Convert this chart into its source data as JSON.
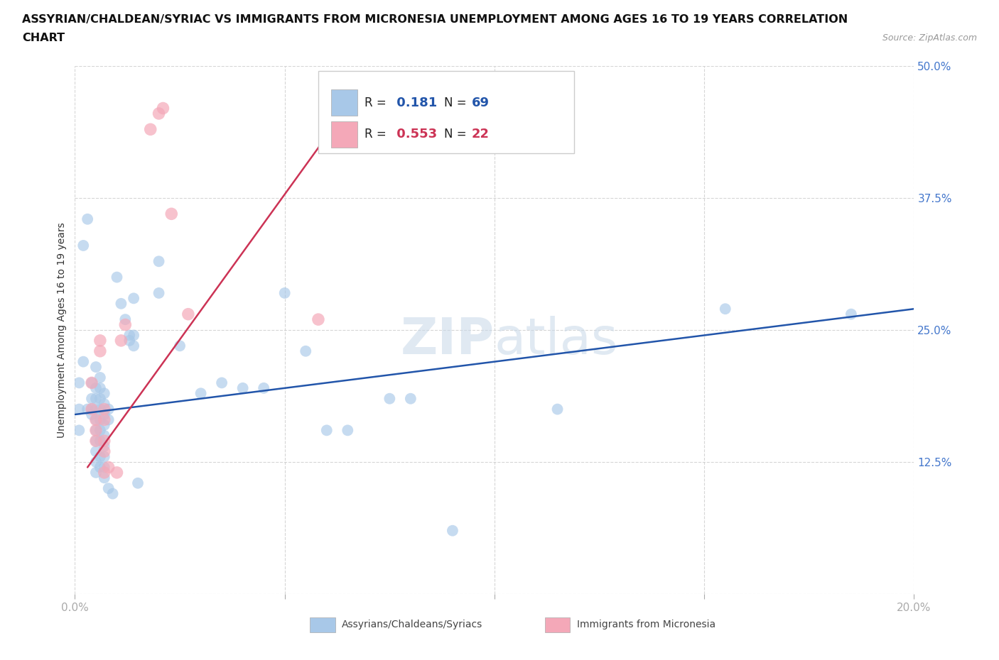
{
  "title_line1": "ASSYRIAN/CHALDEAN/SYRIAC VS IMMIGRANTS FROM MICRONESIA UNEMPLOYMENT AMONG AGES 16 TO 19 YEARS CORRELATION",
  "title_line2": "CHART",
  "source_text": "Source: ZipAtlas.com",
  "ylabel": "Unemployment Among Ages 16 to 19 years",
  "xlim": [
    0.0,
    0.2
  ],
  "ylim": [
    0.0,
    0.5
  ],
  "blue_R": 0.181,
  "blue_N": 69,
  "pink_R": 0.553,
  "pink_N": 22,
  "blue_color": "#a8c8e8",
  "pink_color": "#f4a8b8",
  "blue_line_color": "#2255aa",
  "pink_line_color": "#cc3355",
  "legend_label_blue": "Assyrians/Chaldeans/Syriacs",
  "legend_label_pink": "Immigrants from Micronesia",
  "blue_points": [
    [
      0.001,
      0.175
    ],
    [
      0.001,
      0.155
    ],
    [
      0.001,
      0.2
    ],
    [
      0.002,
      0.33
    ],
    [
      0.002,
      0.22
    ],
    [
      0.003,
      0.355
    ],
    [
      0.003,
      0.175
    ],
    [
      0.004,
      0.2
    ],
    [
      0.004,
      0.185
    ],
    [
      0.004,
      0.175
    ],
    [
      0.004,
      0.17
    ],
    [
      0.005,
      0.215
    ],
    [
      0.005,
      0.195
    ],
    [
      0.005,
      0.185
    ],
    [
      0.005,
      0.175
    ],
    [
      0.005,
      0.165
    ],
    [
      0.005,
      0.155
    ],
    [
      0.005,
      0.145
    ],
    [
      0.005,
      0.135
    ],
    [
      0.005,
      0.125
    ],
    [
      0.005,
      0.115
    ],
    [
      0.006,
      0.205
    ],
    [
      0.006,
      0.195
    ],
    [
      0.006,
      0.185
    ],
    [
      0.006,
      0.175
    ],
    [
      0.006,
      0.165
    ],
    [
      0.006,
      0.155
    ],
    [
      0.006,
      0.145
    ],
    [
      0.006,
      0.13
    ],
    [
      0.006,
      0.12
    ],
    [
      0.007,
      0.19
    ],
    [
      0.007,
      0.18
    ],
    [
      0.007,
      0.17
    ],
    [
      0.007,
      0.16
    ],
    [
      0.007,
      0.15
    ],
    [
      0.007,
      0.14
    ],
    [
      0.007,
      0.13
    ],
    [
      0.007,
      0.12
    ],
    [
      0.007,
      0.11
    ],
    [
      0.008,
      0.175
    ],
    [
      0.008,
      0.165
    ],
    [
      0.008,
      0.1
    ],
    [
      0.009,
      0.095
    ],
    [
      0.01,
      0.3
    ],
    [
      0.011,
      0.275
    ],
    [
      0.012,
      0.26
    ],
    [
      0.013,
      0.245
    ],
    [
      0.013,
      0.24
    ],
    [
      0.014,
      0.28
    ],
    [
      0.014,
      0.245
    ],
    [
      0.014,
      0.235
    ],
    [
      0.015,
      0.105
    ],
    [
      0.02,
      0.315
    ],
    [
      0.02,
      0.285
    ],
    [
      0.025,
      0.235
    ],
    [
      0.03,
      0.19
    ],
    [
      0.035,
      0.2
    ],
    [
      0.04,
      0.195
    ],
    [
      0.045,
      0.195
    ],
    [
      0.05,
      0.285
    ],
    [
      0.055,
      0.23
    ],
    [
      0.06,
      0.155
    ],
    [
      0.065,
      0.155
    ],
    [
      0.075,
      0.185
    ],
    [
      0.08,
      0.185
    ],
    [
      0.09,
      0.06
    ],
    [
      0.115,
      0.175
    ],
    [
      0.155,
      0.27
    ],
    [
      0.185,
      0.265
    ]
  ],
  "pink_points": [
    [
      0.004,
      0.2
    ],
    [
      0.004,
      0.175
    ],
    [
      0.005,
      0.165
    ],
    [
      0.005,
      0.155
    ],
    [
      0.005,
      0.145
    ],
    [
      0.006,
      0.24
    ],
    [
      0.006,
      0.23
    ],
    [
      0.007,
      0.175
    ],
    [
      0.007,
      0.165
    ],
    [
      0.007,
      0.145
    ],
    [
      0.007,
      0.135
    ],
    [
      0.007,
      0.115
    ],
    [
      0.008,
      0.12
    ],
    [
      0.01,
      0.115
    ],
    [
      0.011,
      0.24
    ],
    [
      0.012,
      0.255
    ],
    [
      0.018,
      0.44
    ],
    [
      0.02,
      0.455
    ],
    [
      0.021,
      0.46
    ],
    [
      0.023,
      0.36
    ],
    [
      0.027,
      0.265
    ],
    [
      0.058,
      0.26
    ]
  ],
  "blue_trendline_x": [
    0.0,
    0.2
  ],
  "blue_trendline_y": [
    0.17,
    0.27
  ],
  "pink_trendline_x": [
    0.003,
    0.063
  ],
  "pink_trendline_y": [
    0.12,
    0.45
  ]
}
